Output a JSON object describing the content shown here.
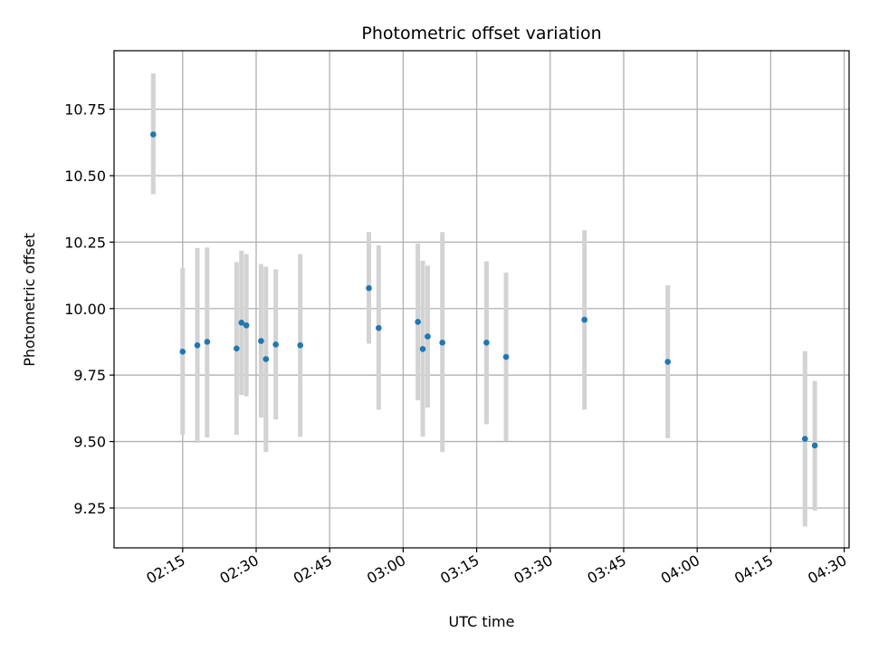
{
  "chart_data": {
    "type": "scatter",
    "title": "Photometric offset variation",
    "xlabel": "UTC time",
    "ylabel": "Photometric offset",
    "x_axis": "time",
    "xlim": [
      "02:01",
      "04:31"
    ],
    "ylim": [
      9.1,
      10.97
    ],
    "grid": true,
    "yticks": [
      9.25,
      9.5,
      9.75,
      10.0,
      10.25,
      10.5,
      10.75
    ],
    "ytick_labels": [
      "9.25",
      "9.50",
      "9.75",
      "10.00",
      "10.25",
      "10.50",
      "10.75"
    ],
    "xticks": [
      "02:15",
      "02:30",
      "02:45",
      "03:00",
      "03:15",
      "03:30",
      "03:45",
      "04:00",
      "04:15",
      "04:30"
    ],
    "colors": {
      "point": "#1f77b4",
      "errorbar": "#d3d3d3",
      "grid": "#b0b0b0"
    },
    "points": [
      {
        "x": "02:09",
        "y": 10.655,
        "low": 10.43,
        "high": 10.885
      },
      {
        "x": "02:15",
        "y": 9.838,
        "low": 9.525,
        "high": 10.152
      },
      {
        "x": "02:18",
        "y": 9.862,
        "low": 9.495,
        "high": 10.228
      },
      {
        "x": "02:20",
        "y": 9.875,
        "low": 9.515,
        "high": 10.23
      },
      {
        "x": "02:26",
        "y": 9.85,
        "low": 9.525,
        "high": 10.175
      },
      {
        "x": "02:27",
        "y": 9.947,
        "low": 9.675,
        "high": 10.218
      },
      {
        "x": "02:28",
        "y": 9.937,
        "low": 9.67,
        "high": 10.205
      },
      {
        "x": "02:31",
        "y": 9.878,
        "low": 9.59,
        "high": 10.168
      },
      {
        "x": "02:32",
        "y": 9.81,
        "low": 9.46,
        "high": 10.158
      },
      {
        "x": "02:34",
        "y": 9.865,
        "low": 9.583,
        "high": 10.148
      },
      {
        "x": "02:39",
        "y": 9.862,
        "low": 9.518,
        "high": 10.205
      },
      {
        "x": "02:53",
        "y": 10.077,
        "low": 9.868,
        "high": 10.288
      },
      {
        "x": "02:55",
        "y": 9.927,
        "low": 9.62,
        "high": 10.238
      },
      {
        "x": "03:03",
        "y": 9.95,
        "low": 9.655,
        "high": 10.245
      },
      {
        "x": "03:04",
        "y": 9.848,
        "low": 9.518,
        "high": 10.18
      },
      {
        "x": "03:05",
        "y": 9.895,
        "low": 9.628,
        "high": 10.162
      },
      {
        "x": "03:08",
        "y": 9.872,
        "low": 9.46,
        "high": 10.288
      },
      {
        "x": "03:17",
        "y": 9.872,
        "low": 9.565,
        "high": 10.178
      },
      {
        "x": "03:21",
        "y": 9.818,
        "low": 9.502,
        "high": 10.135
      },
      {
        "x": "03:37",
        "y": 9.958,
        "low": 9.62,
        "high": 10.295
      },
      {
        "x": "03:54",
        "y": 9.8,
        "low": 9.512,
        "high": 10.088
      },
      {
        "x": "04:22",
        "y": 9.51,
        "low": 9.18,
        "high": 9.84
      },
      {
        "x": "04:24",
        "y": 9.485,
        "low": 9.24,
        "high": 9.728
      }
    ]
  }
}
